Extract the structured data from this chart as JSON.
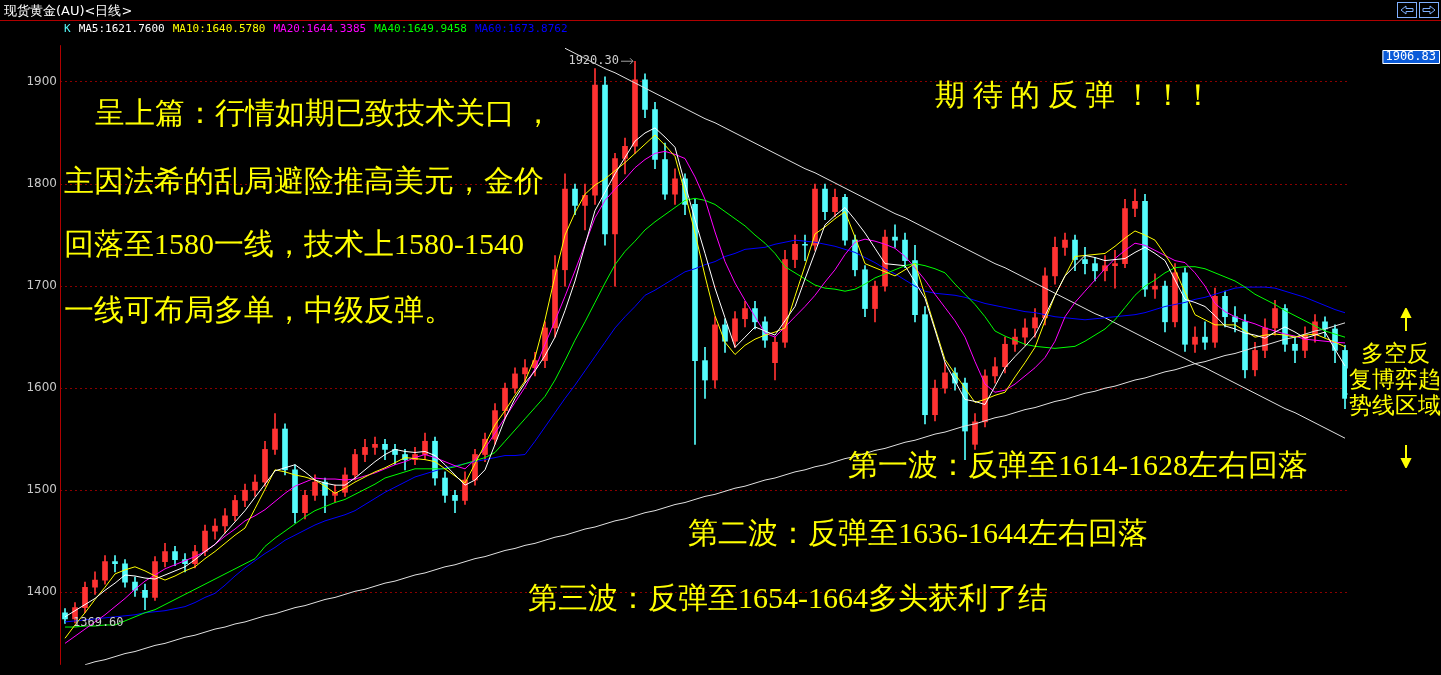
{
  "chart_data": {
    "type": "candlestick",
    "title": "现货黄金(AU)<日线>",
    "categories": [
      null,
      null,
      null,
      null,
      null,
      null,
      null,
      null,
      null,
      null,
      null,
      null,
      null,
      null,
      null,
      null,
      null,
      null,
      null,
      null,
      null,
      null,
      null,
      null,
      null,
      null,
      null,
      null,
      null,
      null,
      null,
      null,
      null,
      null,
      null,
      null,
      null,
      null,
      null,
      null,
      null,
      null,
      null,
      null,
      null,
      null,
      null,
      null,
      null,
      null,
      null,
      null,
      null,
      null,
      null,
      null,
      null,
      null,
      null,
      null,
      null,
      null,
      null,
      null,
      null,
      null,
      null,
      null,
      null,
      null,
      null,
      null,
      null,
      null,
      null,
      null,
      null,
      null,
      null,
      null,
      null,
      null,
      null,
      null,
      null,
      null,
      null,
      null,
      null,
      null,
      null,
      null,
      null,
      null,
      null,
      null,
      null,
      null,
      null,
      null,
      null,
      null,
      null,
      null,
      null,
      null,
      null,
      null,
      null,
      null,
      null,
      null,
      null,
      null,
      null,
      null,
      null,
      null,
      null,
      null,
      null,
      null,
      null,
      null,
      null,
      null,
      null,
      null,
      null
    ],
    "ylim": [
      1329,
      1936
    ],
    "yticks": [
      1400,
      1500,
      1600,
      1700,
      1800,
      1900
    ],
    "tick_labels": "y",
    "grid": "y",
    "annotations": [
      "呈上篇：行情如期已致技术关口 ，",
      "主因法希的乱局避险推高美元，金价",
      "回落至1580一线，技术上1580-1540",
      "一线可布局多单，中级反弹。",
      "期 待 的 反 弹 ！！！",
      "第一波：反弹至1614-1628左右回落",
      "第二波：反弹至1636-1644左右回落",
      "第三波：反弹至1654-1664多头获利了结",
      "多空反",
      "复博弈趋",
      "势线区域",
      "1906.83",
      {
        "text": "1920.30",
        "y": 1920.3
      },
      {
        "text": "1369.60",
        "y": 1369.6
      }
    ],
    "series": [
      {
        "name": "K",
        "ohlc": [
          [
            1380,
            1384,
            1369.6,
            1374
          ],
          [
            1374,
            1390,
            1370,
            1385
          ],
          [
            1385,
            1410,
            1380,
            1405
          ],
          [
            1405,
            1420,
            1398,
            1412
          ],
          [
            1412,
            1436,
            1408,
            1430
          ],
          [
            1430,
            1436,
            1420,
            1428
          ],
          [
            1428,
            1432,
            1405,
            1410
          ],
          [
            1410,
            1415,
            1396,
            1402
          ],
          [
            1402,
            1408,
            1383,
            1395
          ],
          [
            1395,
            1435,
            1392,
            1430
          ],
          [
            1430,
            1448,
            1425,
            1440
          ],
          [
            1440,
            1445,
            1426,
            1432
          ],
          [
            1432,
            1438,
            1420,
            1428
          ],
          [
            1428,
            1446,
            1424,
            1440
          ],
          [
            1440,
            1466,
            1436,
            1460
          ],
          [
            1460,
            1472,
            1452,
            1465
          ],
          [
            1465,
            1482,
            1458,
            1475
          ],
          [
            1475,
            1495,
            1470,
            1490
          ],
          [
            1490,
            1506,
            1484,
            1500
          ],
          [
            1500,
            1515,
            1494,
            1508
          ],
          [
            1508,
            1548,
            1504,
            1540
          ],
          [
            1540,
            1575,
            1535,
            1560
          ],
          [
            1560,
            1565,
            1515,
            1520
          ],
          [
            1520,
            1525,
            1468,
            1478
          ],
          [
            1478,
            1500,
            1472,
            1495
          ],
          [
            1495,
            1515,
            1490,
            1508
          ],
          [
            1508,
            1512,
            1478,
            1495
          ],
          [
            1495,
            1505,
            1488,
            1498
          ],
          [
            1498,
            1522,
            1494,
            1515
          ],
          [
            1515,
            1540,
            1510,
            1535
          ],
          [
            1535,
            1550,
            1528,
            1542
          ],
          [
            1542,
            1552,
            1535,
            1545
          ],
          [
            1545,
            1550,
            1530,
            1540
          ],
          [
            1540,
            1545,
            1525,
            1535
          ],
          [
            1535,
            1540,
            1520,
            1530
          ],
          [
            1530,
            1542,
            1525,
            1535
          ],
          [
            1535,
            1556,
            1530,
            1548
          ],
          [
            1548,
            1552,
            1505,
            1512
          ],
          [
            1512,
            1518,
            1488,
            1495
          ],
          [
            1495,
            1500,
            1478,
            1490
          ],
          [
            1490,
            1518,
            1486,
            1510
          ],
          [
            1510,
            1540,
            1505,
            1535
          ],
          [
            1535,
            1556,
            1528,
            1550
          ],
          [
            1550,
            1585,
            1545,
            1578
          ],
          [
            1578,
            1605,
            1570,
            1600
          ],
          [
            1600,
            1620,
            1595,
            1614
          ],
          [
            1614,
            1628,
            1606,
            1620
          ],
          [
            1620,
            1635,
            1612,
            1627
          ],
          [
            1627,
            1665,
            1620,
            1659
          ],
          [
            1659,
            1730,
            1650,
            1716
          ],
          [
            1716,
            1810,
            1700,
            1795
          ],
          [
            1795,
            1800,
            1770,
            1779
          ],
          [
            1779,
            1800,
            1755,
            1789
          ],
          [
            1789,
            1913,
            1780,
            1897
          ],
          [
            1897,
            1905,
            1740,
            1751
          ],
          [
            1751,
            1830,
            1700,
            1825
          ],
          [
            1825,
            1845,
            1810,
            1837
          ],
          [
            1837,
            1920.3,
            1830,
            1902
          ],
          [
            1902,
            1908,
            1865,
            1873
          ],
          [
            1873,
            1880,
            1815,
            1824
          ],
          [
            1824,
            1840,
            1785,
            1790
          ],
          [
            1790,
            1815,
            1780,
            1805
          ],
          [
            1805,
            1810,
            1770,
            1780
          ],
          [
            1780,
            1785,
            1545,
            1627
          ],
          [
            1627,
            1640,
            1590,
            1608
          ],
          [
            1608,
            1670,
            1600,
            1662
          ],
          [
            1662,
            1668,
            1635,
            1646
          ],
          [
            1646,
            1675,
            1640,
            1668
          ],
          [
            1668,
            1685,
            1660,
            1678
          ],
          [
            1678,
            1685,
            1658,
            1665
          ],
          [
            1665,
            1670,
            1640,
            1647
          ],
          [
            1625,
            1650,
            1608,
            1645
          ],
          [
            1645,
            1735,
            1640,
            1726
          ],
          [
            1726,
            1750,
            1718,
            1741
          ],
          [
            1741,
            1750,
            1725,
            1740
          ],
          [
            1740,
            1800,
            1735,
            1795
          ],
          [
            1795,
            1800,
            1765,
            1773
          ],
          [
            1773,
            1795,
            1768,
            1787
          ],
          [
            1787,
            1790,
            1740,
            1745
          ],
          [
            1745,
            1750,
            1710,
            1716
          ],
          [
            1716,
            1720,
            1670,
            1678
          ],
          [
            1678,
            1705,
            1665,
            1700
          ],
          [
            1700,
            1755,
            1695,
            1748
          ],
          [
            1748,
            1760,
            1738,
            1745
          ],
          [
            1745,
            1752,
            1718,
            1725
          ],
          [
            1725,
            1740,
            1665,
            1672
          ],
          [
            1672,
            1680,
            1565,
            1574
          ],
          [
            1574,
            1608,
            1568,
            1600
          ],
          [
            1600,
            1625,
            1595,
            1615
          ],
          [
            1615,
            1620,
            1598,
            1605
          ],
          [
            1605,
            1610,
            1530,
            1558
          ],
          [
            1545,
            1575,
            1540,
            1567
          ],
          [
            1567,
            1618,
            1562,
            1612
          ],
          [
            1612,
            1630,
            1605,
            1621
          ],
          [
            1621,
            1650,
            1615,
            1643
          ],
          [
            1643,
            1658,
            1636,
            1650
          ],
          [
            1650,
            1668,
            1642,
            1659
          ],
          [
            1659,
            1678,
            1650,
            1669
          ],
          [
            1669,
            1718,
            1662,
            1710
          ],
          [
            1710,
            1748,
            1702,
            1738
          ],
          [
            1738,
            1752,
            1730,
            1745
          ],
          [
            1745,
            1750,
            1715,
            1726
          ],
          [
            1726,
            1738,
            1712,
            1722
          ],
          [
            1722,
            1728,
            1705,
            1715
          ],
          [
            1715,
            1730,
            1705,
            1720
          ],
          [
            1720,
            1735,
            1698,
            1722
          ],
          [
            1722,
            1785,
            1718,
            1776
          ],
          [
            1776,
            1795,
            1768,
            1783
          ],
          [
            1783,
            1790,
            1690,
            1697
          ],
          [
            1697,
            1712,
            1688,
            1700
          ],
          [
            1700,
            1705,
            1655,
            1665
          ],
          [
            1665,
            1722,
            1660,
            1713
          ],
          [
            1713,
            1718,
            1636,
            1643
          ],
          [
            1643,
            1660,
            1635,
            1650
          ],
          [
            1650,
            1665,
            1638,
            1645
          ],
          [
            1645,
            1698,
            1640,
            1690
          ],
          [
            1690,
            1695,
            1660,
            1670
          ],
          [
            1670,
            1680,
            1655,
            1665
          ],
          [
            1665,
            1672,
            1610,
            1618
          ],
          [
            1618,
            1645,
            1612,
            1637
          ],
          [
            1637,
            1668,
            1630,
            1659
          ],
          [
            1659,
            1686,
            1652,
            1678
          ],
          [
            1678,
            1682,
            1636,
            1643
          ],
          [
            1643,
            1650,
            1625,
            1637
          ],
          [
            1637,
            1660,
            1630,
            1652
          ],
          [
            1652,
            1672,
            1645,
            1665
          ],
          [
            1665,
            1670,
            1650,
            1658
          ],
          [
            1658,
            1662,
            1625,
            1637
          ],
          [
            1637,
            1642,
            1580,
            1590
          ]
        ],
        "colors": [
          "#54fcfc",
          "#ff3232",
          "#ff3232",
          "#ff3232",
          "#ff3232",
          "#54fcfc",
          "#54fcfc",
          "#54fcfc",
          "#54fcfc",
          "#ff3232",
          "#ff3232",
          "#54fcfc",
          "#54fcfc",
          "#ff3232",
          "#ff3232",
          "#ff3232",
          "#ff3232",
          "#ff3232",
          "#ff3232",
          "#ff3232",
          "#ff3232",
          "#ff3232",
          "#54fcfc",
          "#54fcfc",
          "#ff3232",
          "#ff3232",
          "#54fcfc",
          "#ff3232",
          "#ff3232",
          "#ff3232",
          "#ff3232",
          "#ff3232",
          "#54fcfc",
          "#54fcfc",
          "#54fcfc",
          "#ff3232",
          "#ff3232",
          "#54fcfc",
          "#54fcfc",
          "#54fcfc",
          "#ff3232",
          "#ff3232",
          "#ff3232",
          "#ff3232",
          "#ff3232",
          "#ff3232",
          "#ff3232",
          "#ff3232",
          "#ff3232",
          "#ff3232",
          "#ff3232",
          "#54fcfc",
          "#ff3232",
          "#ff3232",
          "#54fcfc",
          "#ff3232",
          "#ff3232",
          "#ff3232",
          "#54fcfc",
          "#54fcfc",
          "#54fcfc",
          "#ff3232",
          "#54fcfc",
          "#54fcfc",
          "#54fcfc",
          "#ff3232",
          "#54fcfc",
          "#ff3232",
          "#ff3232",
          "#54fcfc",
          "#54fcfc",
          "#ff3232",
          "#ff3232",
          "#ff3232",
          "#54fcfc",
          "#ff3232",
          "#54fcfc",
          "#ff3232",
          "#54fcfc",
          "#54fcfc",
          "#54fcfc",
          "#ff3232",
          "#ff3232",
          "#54fcfc",
          "#54fcfc",
          "#54fcfc",
          "#54fcfc",
          "#ff3232",
          "#ff3232",
          "#54fcfc",
          "#54fcfc",
          "#ff3232",
          "#ff3232",
          "#ff3232",
          "#ff3232",
          "#ff3232",
          "#ff3232",
          "#ff3232",
          "#ff3232",
          "#ff3232",
          "#ff3232",
          "#54fcfc",
          "#54fcfc",
          "#54fcfc",
          "#ff3232",
          "#ff3232",
          "#ff3232",
          "#ff3232",
          "#54fcfc",
          "#ff3232",
          "#54fcfc",
          "#ff3232",
          "#54fcfc",
          "#ff3232",
          "#54fcfc",
          "#ff3232",
          "#54fcfc",
          "#54fcfc",
          "#54fcfc",
          "#ff3232",
          "#ff3232",
          "#ff3232",
          "#54fcfc",
          "#54fcfc",
          "#ff3232",
          "#ff3232",
          "#54fcfc",
          "#54fcfc",
          "#54fcfc"
        ]
      },
      {
        "type": "line",
        "name": "MA5:1621.7600",
        "color": "#ffffff",
        "values": [
          1376,
          1382,
          1388,
          1394,
          1402,
          1409,
          1417,
          1416,
          1414,
          1413,
          1417,
          1421,
          1425,
          1432,
          1440,
          1447,
          1458,
          1469,
          1480,
          1493,
          1506,
          1519,
          1522,
          1525,
          1518,
          1510,
          1507,
          1505,
          1505,
          1512,
          1520,
          1528,
          1535,
          1540,
          1538,
          1537,
          1538,
          1534,
          1525,
          1515,
          1505,
          1510,
          1520,
          1545,
          1570,
          1590,
          1605,
          1617,
          1632,
          1650,
          1676,
          1705,
          1740,
          1774,
          1792,
          1810,
          1826,
          1842,
          1850,
          1855,
          1846,
          1836,
          1800,
          1765,
          1732,
          1698,
          1669,
          1640,
          1650,
          1660,
          1656,
          1652,
          1666,
          1680,
          1707,
          1733,
          1760,
          1769,
          1777,
          1765,
          1752,
          1737,
          1722,
          1721,
          1720,
          1704,
          1688,
          1657,
          1625,
          1607,
          1589,
          1587,
          1584,
          1602,
          1620,
          1631,
          1641,
          1652,
          1671,
          1691,
          1710,
          1720,
          1730,
          1728,
          1725,
          1726,
          1727,
          1733,
          1738,
          1732,
          1725,
          1706,
          1687,
          1684,
          1680,
          1671,
          1661,
          1658,
          1654,
          1652,
          1649,
          1655,
          1660,
          1655,
          1649,
          1652,
          1655,
          1638,
          1621.76
        ]
      },
      {
        "type": "line",
        "name": "MA10:1640.5780",
        "color": "#ffff00",
        "values": [
          1355,
          1368,
          1380,
          1393,
          1405,
          1418,
          1422,
          1425,
          1421,
          1416,
          1412,
          1416,
          1421,
          1425,
          1433,
          1440,
          1448,
          1456,
          1463,
          1482,
          1501,
          1520,
          1518,
          1515,
          1513,
          1510,
          1504,
          1497,
          1502,
          1508,
          1513,
          1518,
          1522,
          1527,
          1532,
          1531,
          1530,
          1528,
          1521,
          1514,
          1507,
          1526,
          1545,
          1564,
          1578,
          1593,
          1607,
          1630,
          1667,
          1710,
          1750,
          1772,
          1790,
          1799,
          1805,
          1813,
          1821,
          1830,
          1839,
          1848,
          1838,
          1827,
          1791,
          1752,
          1710,
          1671,
          1645,
          1633,
          1642,
          1648,
          1652,
          1655,
          1659,
          1690,
          1720,
          1751,
          1758,
          1766,
          1773,
          1748,
          1722,
          1718,
          1714,
          1710,
          1716,
          1722,
          1691,
          1659,
          1628,
          1614,
          1600,
          1586,
          1589,
          1593,
          1596,
          1611,
          1625,
          1640,
          1666,
          1691,
          1710,
          1729,
          1730,
          1731,
          1732,
          1739,
          1747,
          1754,
          1750,
          1745,
          1731,
          1716,
          1694,
          1672,
          1667,
          1662,
          1662,
          1662,
          1656,
          1650,
          1652,
          1653,
          1652,
          1650,
          1652,
          1653,
          1649,
          1645,
          1640.58
        ]
      },
      {
        "type": "line",
        "name": "MA20:1644.3385",
        "color": "#ff00ff",
        "values": [
          1350,
          1357,
          1364,
          1371,
          1378,
          1386,
          1394,
          1403,
          1411,
          1417,
          1423,
          1427,
          1431,
          1435,
          1440,
          1447,
          1455,
          1462,
          1470,
          1475,
          1481,
          1489,
          1497,
          1504,
          1508,
          1512,
          1511,
          1511,
          1510,
          1511,
          1514,
          1517,
          1521,
          1525,
          1528,
          1532,
          1535,
          1532,
          1528,
          1524,
          1521,
          1530,
          1541,
          1556,
          1571,
          1586,
          1601,
          1619,
          1643,
          1666,
          1690,
          1715,
          1741,
          1767,
          1784,
          1795,
          1805,
          1816,
          1824,
          1830,
          1832,
          1829,
          1825,
          1807,
          1785,
          1753,
          1724,
          1703,
          1686,
          1670,
          1654,
          1650,
          1660,
          1670,
          1680,
          1691,
          1704,
          1716,
          1731,
          1743,
          1746,
          1744,
          1741,
          1737,
          1729,
          1718,
          1706,
          1692,
          1679,
          1666,
          1650,
          1626,
          1604,
          1596,
          1598,
          1604,
          1612,
          1620,
          1630,
          1646,
          1670,
          1684,
          1695,
          1706,
          1717,
          1727,
          1735,
          1742,
          1740,
          1735,
          1730,
          1725,
          1723,
          1713,
          1700,
          1683,
          1675,
          1670,
          1666,
          1663,
          1659,
          1656,
          1653,
          1651,
          1648,
          1647,
          1646,
          1645,
          1644.34
        ]
      },
      {
        "type": "line",
        "name": "MA40:1649.9458",
        "color": "#00ff00",
        "values": [
          1366,
          1366,
          1367,
          1367,
          1368,
          1368,
          1372,
          1376,
          1380,
          1383,
          1388,
          1393,
          1398,
          1403,
          1408,
          1413,
          1418,
          1423,
          1428,
          1433,
          1445,
          1453,
          1460,
          1467,
          1474,
          1480,
          1484,
          1488,
          1491,
          1496,
          1501,
          1506,
          1512,
          1515,
          1518,
          1521,
          1521,
          1521,
          1521,
          1523,
          1526,
          1529,
          1532,
          1537,
          1548,
          1559,
          1570,
          1581,
          1592,
          1608,
          1627,
          1647,
          1665,
          1684,
          1703,
          1721,
          1734,
          1744,
          1755,
          1763,
          1770,
          1777,
          1784,
          1786,
          1784,
          1780,
          1773,
          1766,
          1759,
          1750,
          1742,
          1732,
          1719,
          1713,
          1707,
          1701,
          1698,
          1697,
          1695,
          1697,
          1702,
          1708,
          1712,
          1716,
          1720,
          1722,
          1720,
          1717,
          1713,
          1702,
          1692,
          1682,
          1670,
          1656,
          1651,
          1647,
          1643,
          1641,
          1640,
          1639,
          1640,
          1641,
          1646,
          1652,
          1658,
          1667,
          1679,
          1691,
          1700,
          1706,
          1713,
          1718,
          1719,
          1719,
          1717,
          1713,
          1709,
          1705,
          1699,
          1692,
          1687,
          1682,
          1676,
          1671,
          1666,
          1661,
          1656,
          1653,
          1649.95
        ]
      },
      {
        "type": "line",
        "name": "MA60:1673.8762",
        "color": "#0000ff",
        "values": [
          1371,
          1372,
          1373,
          1374,
          1375,
          1376,
          1377,
          1378,
          1380,
          1381,
          1382,
          1384,
          1386,
          1390,
          1395,
          1399,
          1407,
          1416,
          1424,
          1431,
          1438,
          1444,
          1451,
          1456,
          1461,
          1466,
          1470,
          1473,
          1476,
          1480,
          1486,
          1492,
          1498,
          1503,
          1508,
          1513,
          1516,
          1519,
          1522,
          1524,
          1526,
          1528,
          1530,
          1532,
          1534,
          1534,
          1535,
          1548,
          1562,
          1576,
          1590,
          1603,
          1617,
          1631,
          1645,
          1659,
          1670,
          1680,
          1691,
          1696,
          1702,
          1708,
          1714,
          1717,
          1721,
          1724,
          1729,
          1732,
          1736,
          1737,
          1738,
          1741,
          1743,
          1745,
          1744,
          1743,
          1741,
          1739,
          1736,
          1733,
          1728,
          1723,
          1717,
          1712,
          1706,
          1700,
          1695,
          1693,
          1692,
          1691,
          1689,
          1686,
          1683,
          1681,
          1679,
          1677,
          1675,
          1674,
          1672,
          1670,
          1669,
          1668,
          1667,
          1668,
          1669,
          1670,
          1671,
          1672,
          1674,
          1677,
          1680,
          1682,
          1684,
          1687,
          1689,
          1692,
          1695,
          1698,
          1699,
          1699,
          1699,
          1698,
          1695,
          1692,
          1689,
          1685,
          1681,
          1677,
          1673.88
        ]
      },
      {
        "type": "line",
        "color": "#e0e0e0",
        "values": [
          null,
          null,
          1329,
          1332,
          1334,
          1337,
          1340,
          1342,
          1345,
          1348,
          1350,
          1353,
          1356,
          1358,
          1361,
          1364,
          1366,
          1369,
          1371,
          1374,
          1377,
          1379,
          1382,
          1385,
          1387,
          1390,
          1393,
          1395,
          1398,
          1401,
          1403,
          1406,
          1409,
          1411,
          1414,
          1417,
          1419,
          1422,
          1425,
          1427,
          1430,
          1433,
          1435,
          1438,
          1441,
          1443,
          1446,
          1448,
          1451,
          1454,
          1456,
          1459,
          1462,
          1464,
          1467,
          1470,
          1472,
          1475,
          1478,
          1480,
          1483,
          1486,
          1488,
          1491,
          1494,
          1496,
          1499,
          1502,
          1504,
          1507,
          1510,
          1512,
          1515,
          1518,
          1520,
          1523,
          1525,
          1528,
          1531,
          1533,
          1536,
          1539,
          1541,
          1544,
          1547,
          1549,
          1552,
          1555,
          1557,
          1560,
          1563,
          1565,
          1568,
          1571,
          1573,
          1576,
          1579,
          1581,
          1584,
          1587,
          1589,
          1592,
          1595,
          1597,
          1600,
          1602,
          1605,
          1608,
          1610,
          1613,
          1616,
          1618,
          1621,
          1624,
          1626,
          1629,
          1632,
          1634,
          1637,
          1640,
          1642,
          1645,
          1648,
          1650,
          1653,
          1656,
          1658,
          1661,
          1664
        ]
      },
      {
        "type": "line",
        "color": "#e0e0e0",
        "values": [
          null,
          null,
          null,
          null,
          null,
          null,
          null,
          null,
          null,
          null,
          null,
          null,
          null,
          null,
          null,
          null,
          null,
          null,
          null,
          null,
          null,
          null,
          null,
          null,
          null,
          null,
          null,
          null,
          null,
          null,
          null,
          null,
          null,
          null,
          null,
          null,
          null,
          null,
          null,
          null,
          null,
          null,
          null,
          null,
          null,
          null,
          null,
          null,
          null,
          null,
          1933,
          1928,
          1923,
          1918,
          1913,
          1909,
          1904,
          1899,
          1894,
          1889,
          1884,
          1879,
          1874,
          1869,
          1864,
          1860,
          1855,
          1850,
          1845,
          1840,
          1835,
          1830,
          1825,
          1820,
          1815,
          1811,
          1806,
          1801,
          1796,
          1791,
          1786,
          1781,
          1776,
          1771,
          1767,
          1762,
          1757,
          1752,
          1747,
          1742,
          1737,
          1732,
          1727,
          1722,
          1718,
          1713,
          1708,
          1703,
          1698,
          1693,
          1688,
          1683,
          1678,
          1673,
          1669,
          1664,
          1659,
          1654,
          1649,
          1644,
          1639,
          1634,
          1629,
          1624,
          1620,
          1615,
          1610,
          1605,
          1600,
          1595,
          1590,
          1585,
          1580,
          1576,
          1571,
          1566,
          1561,
          1556,
          1551
        ]
      }
    ]
  }
}
